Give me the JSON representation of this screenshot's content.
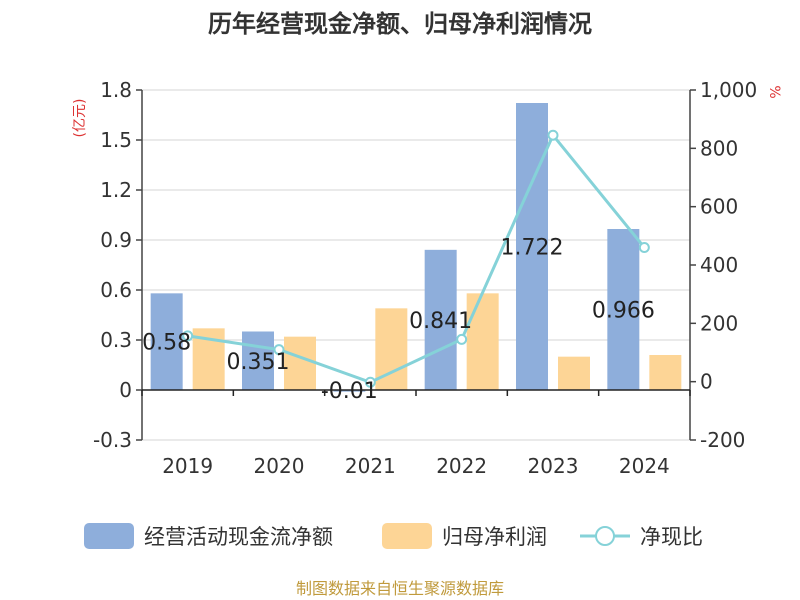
{
  "chart_data": {
    "type": "bar",
    "title": "历年经营现金净额、归母净利润情况",
    "categories": [
      "2019",
      "2020",
      "2021",
      "2022",
      "2023",
      "2024"
    ],
    "y_left": {
      "unit_label": "(亿元)",
      "ylim": [
        -0.3,
        1.8
      ],
      "ticks": [
        "1.8",
        "1.5",
        "1.2",
        "0.9",
        "0.6",
        "0.3",
        "0",
        "-0.3"
      ],
      "tick_values": [
        1.8,
        1.5,
        1.2,
        0.9,
        0.6,
        0.3,
        0,
        -0.3
      ]
    },
    "y_right": {
      "unit_label": "%",
      "ylim": [
        -200,
        1000
      ],
      "ticks": [
        "1,000",
        "800",
        "600",
        "400",
        "200",
        "0",
        "-200"
      ],
      "tick_values": [
        1000,
        800,
        600,
        400,
        200,
        0,
        -200
      ]
    },
    "series": [
      {
        "name": "经营活动现金流净额",
        "type": "bar",
        "axis": "left",
        "color": "#8eaedb",
        "values": [
          0.58,
          0.351,
          -0.01,
          0.841,
          1.722,
          0.966
        ],
        "labels": [
          "0.58",
          "0.351",
          "-0.01",
          "0.841",
          "1.722",
          "0.966"
        ]
      },
      {
        "name": "归母净利润",
        "type": "bar",
        "axis": "left",
        "color": "#fdd596",
        "values": [
          0.37,
          0.32,
          0.49,
          0.58,
          0.2,
          0.21
        ]
      },
      {
        "name": "净现比",
        "type": "line",
        "axis": "right",
        "color": "#85d2d8",
        "values": [
          157,
          110,
          -2,
          145,
          845,
          460
        ]
      }
    ],
    "grid": true,
    "legend_position": "bottom",
    "source": "制图数据来自恒生聚源数据库",
    "source_color": "#c09a3c",
    "unit_color": "#dd3333"
  }
}
